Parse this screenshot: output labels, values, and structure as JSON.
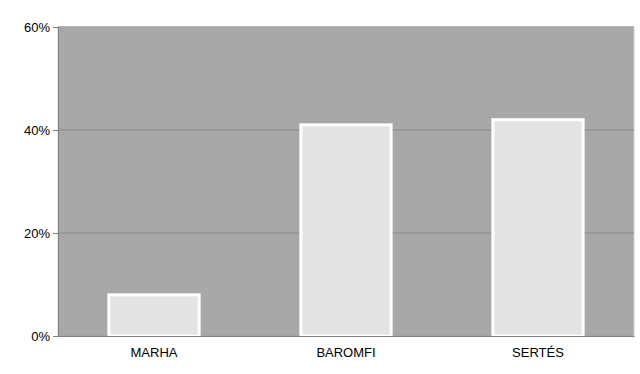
{
  "chart_data": {
    "type": "bar",
    "categories": [
      "MARHA",
      "BAROMFI",
      "SERTÉS"
    ],
    "values": [
      8,
      41,
      42
    ],
    "color": "#e4e4e4",
    "ylim": [
      0,
      60
    ],
    "yticks": [
      {
        "value": 0,
        "label": "0%"
      },
      {
        "value": 20,
        "label": "20%"
      },
      {
        "value": 40,
        "label": "40%"
      },
      {
        "value": 60,
        "label": "60%"
      }
    ],
    "grid": true
  }
}
